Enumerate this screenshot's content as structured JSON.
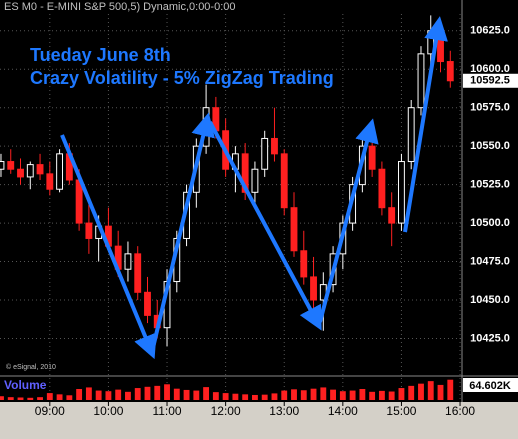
{
  "chart_data": {
    "type": "candlestick",
    "title": "ES M0 - E-MINI S&P 500,5) Dynamic,0:00-0:00",
    "annotations": [
      "Tueday June 8th",
      "Crazy Volatility - 5% ZigZag Trading"
    ],
    "copyright": "© eSignal, 2010",
    "volume_title": "Volume",
    "volume_label": "64.602K",
    "last_price_label": "10592.5",
    "up_color": "#ffffff",
    "down_color": "#ff2020",
    "volume_color": "#ff2020",
    "grid": true,
    "x": [
      490,
      500,
      510,
      520,
      530,
      540,
      550,
      560,
      570,
      580,
      590,
      600,
      610,
      620,
      630,
      640,
      650,
      660,
      670,
      680,
      690,
      700,
      710,
      720,
      730,
      740,
      750,
      760,
      770,
      780,
      790,
      800,
      810,
      820,
      830,
      840,
      850,
      860,
      870,
      880,
      890,
      900,
      910,
      920,
      930,
      940,
      950
    ],
    "open": [
      10535,
      10540,
      10535,
      10530,
      10538,
      10532,
      10522,
      10545,
      10528,
      10500,
      10490,
      10498,
      10485,
      10470,
      10480,
      10455,
      10440,
      10432,
      10462,
      10490,
      10520,
      10550,
      10575,
      10560,
      10535,
      10545,
      10520,
      10535,
      10555,
      10545,
      10510,
      10482,
      10465,
      10450,
      10460,
      10480,
      10500,
      10525,
      10550,
      10535,
      10510,
      10500,
      10540,
      10575,
      10610,
      10625,
      10605
    ],
    "high": [
      10545,
      10548,
      10542,
      10540,
      10545,
      10540,
      10548,
      10552,
      10535,
      10512,
      10505,
      10510,
      10495,
      10488,
      10485,
      10465,
      10450,
      10470,
      10495,
      10525,
      10555,
      10590,
      10582,
      10568,
      10550,
      10552,
      10540,
      10560,
      10575,
      10548,
      10520,
      10495,
      10478,
      10468,
      10485,
      10505,
      10530,
      10555,
      10565,
      10540,
      10520,
      10545,
      10580,
      10615,
      10635,
      10632,
      10612
    ],
    "low": [
      10530,
      10532,
      10525,
      10522,
      10528,
      10518,
      10520,
      10525,
      10495,
      10480,
      10475,
      10482,
      10465,
      10462,
      10450,
      10435,
      10425,
      10420,
      10455,
      10485,
      10510,
      10545,
      10555,
      10530,
      10520,
      10515,
      10512,
      10530,
      10540,
      10505,
      10478,
      10460,
      10440,
      10430,
      10455,
      10470,
      10495,
      10520,
      10530,
      10505,
      10485,
      10495,
      10535,
      10570,
      10600,
      10598,
      10588
    ],
    "close": [
      10540,
      10535,
      10530,
      10538,
      10532,
      10522,
      10545,
      10528,
      10500,
      10490,
      10498,
      10485,
      10470,
      10480,
      10455,
      10440,
      10432,
      10462,
      10490,
      10520,
      10550,
      10575,
      10560,
      10535,
      10545,
      10520,
      10535,
      10555,
      10545,
      10510,
      10482,
      10465,
      10450,
      10460,
      10480,
      10500,
      10525,
      10550,
      10535,
      10510,
      10500,
      10540,
      10575,
      10610,
      10625,
      10605,
      10592.5
    ],
    "volume": [
      12000,
      9000,
      8000,
      7000,
      9000,
      22000,
      18000,
      15000,
      35000,
      40000,
      30000,
      28000,
      33000,
      26000,
      38000,
      42000,
      45000,
      50000,
      36000,
      32000,
      30000,
      41000,
      25000,
      22000,
      20000,
      18000,
      16000,
      17000,
      21000,
      30000,
      34000,
      31000,
      36000,
      40000,
      33000,
      28000,
      30000,
      35000,
      26000,
      29000,
      27000,
      38000,
      45000,
      52000,
      60000,
      48000,
      64602
    ],
    "xlim": [
      489,
      962
    ],
    "ylim": [
      10411,
      10645
    ],
    "volume_ylim": [
      0,
      70000
    ],
    "xticks": [
      {
        "value": 540,
        "label": "09:00"
      },
      {
        "value": 600,
        "label": "10:00"
      },
      {
        "value": 660,
        "label": "11:00"
      },
      {
        "value": 720,
        "label": "12:00"
      },
      {
        "value": 780,
        "label": "13:00"
      },
      {
        "value": 840,
        "label": "14:00"
      },
      {
        "value": 900,
        "label": "15:00"
      },
      {
        "value": 960,
        "label": "16:00"
      }
    ],
    "yticks": [
      {
        "value": 10425,
        "label": "10425.0"
      },
      {
        "value": 10450,
        "label": "10450.0"
      },
      {
        "value": 10475,
        "label": "10475.0"
      },
      {
        "value": 10500,
        "label": "10500.0"
      },
      {
        "value": 10525,
        "label": "10525.0"
      },
      {
        "value": 10550,
        "label": "10550.0"
      },
      {
        "value": 10575,
        "label": "10575.0"
      },
      {
        "value": 10600,
        "label": "10600.0"
      },
      {
        "value": 10625,
        "label": "10625.0"
      }
    ]
  }
}
